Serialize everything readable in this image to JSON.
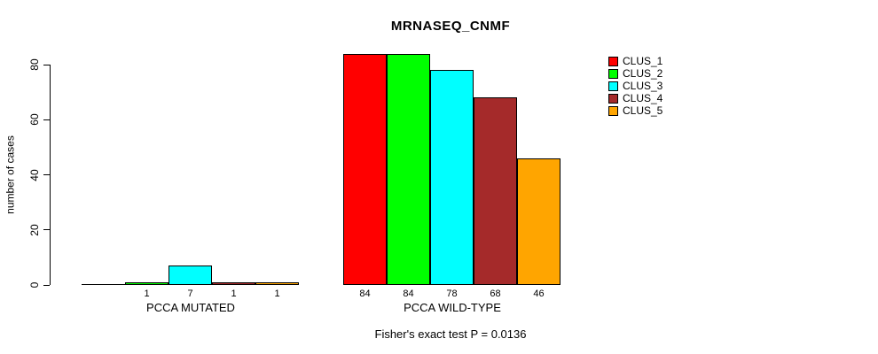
{
  "chart_data": {
    "type": "bar",
    "title": "MRNASEQ_CNMF",
    "ylabel": "number of cases",
    "xlabel": "",
    "annotation": "Fisher's exact test P = 0.0136",
    "yticks": [
      0,
      20,
      40,
      60,
      80
    ],
    "ylim": [
      0,
      84
    ],
    "grid": false,
    "legend_position": "right",
    "series_names": [
      "CLUS_1",
      "CLUS_2",
      "CLUS_3",
      "CLUS_4",
      "CLUS_5"
    ],
    "series_colors": [
      "#FF0000",
      "#00FF00",
      "#00FFFF",
      "#A52A2A",
      "#FFA500"
    ],
    "groups": [
      {
        "label": "PCCA MUTATED",
        "values": [
          0,
          1,
          7,
          1,
          1
        ]
      },
      {
        "label": "PCCA WILD-TYPE",
        "values": [
          84,
          84,
          78,
          68,
          46
        ]
      }
    ]
  }
}
